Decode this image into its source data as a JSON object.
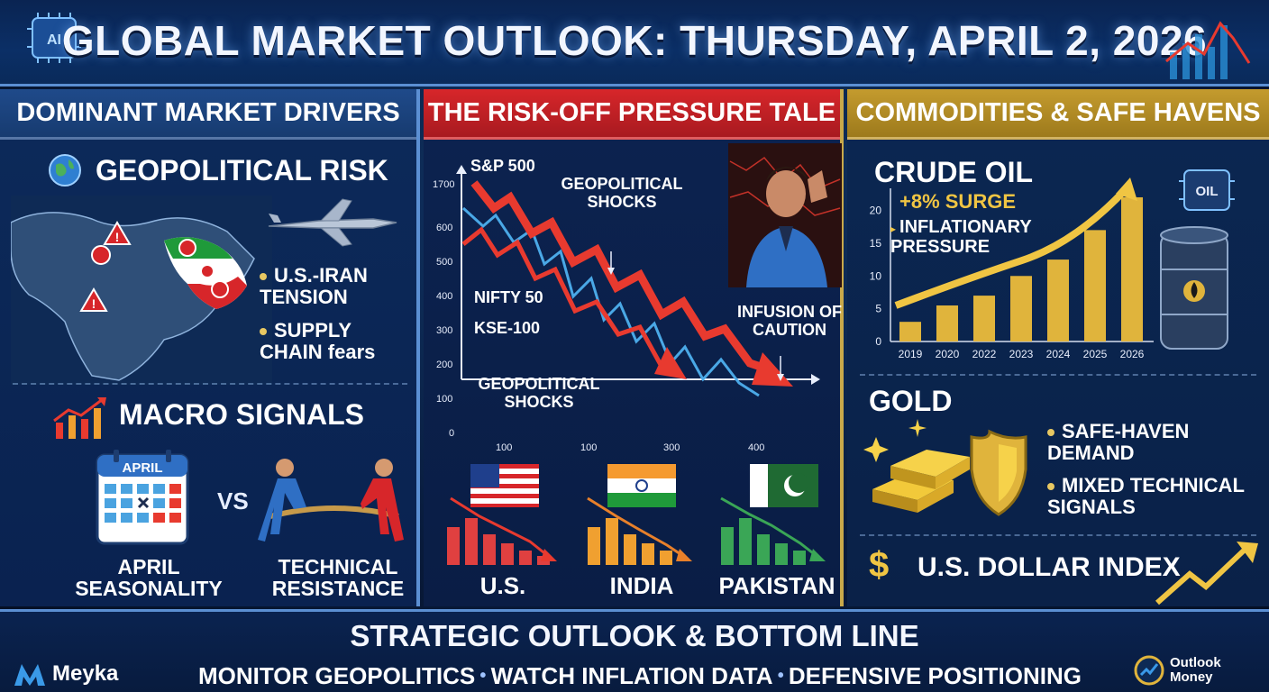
{
  "header": {
    "title": "GLOBAL MARKET OUTLOOK: THURSDAY, APRIL 2, 2026",
    "chip_label": "AI"
  },
  "left": {
    "heading": "DOMINANT MARKET DRIVERS",
    "geo": {
      "title": "GEOPOLITICAL RISK",
      "bullets": [
        "U.S.-IRAN TENSION",
        "SUPPLY CHAIN fears"
      ]
    },
    "macro": {
      "title": "MACRO SIGNALS",
      "calendar_month": "APRIL",
      "vs": "VS",
      "left_label": "APRIL SEASONALITY",
      "right_label": "TECHNICAL RESISTANCE"
    }
  },
  "middle": {
    "heading": "THE RISK-OFF PRESSURE TALE",
    "chart": {
      "series_labels": [
        "S&P 500",
        "NIFTY 50",
        "KSE-100"
      ],
      "annotations": [
        "GEOPOLITICAL SHOCKS",
        "GEOPOLITICAL SHOCKS",
        "INFUSION OF CAUTION"
      ]
    },
    "countries": [
      "U.S.",
      "INDIA",
      "PAKISTAN"
    ]
  },
  "right": {
    "heading": "COMMODITIES & SAFE HAVENS",
    "oil": {
      "title": "CRUDE OIL",
      "surge": "+8% SURGE",
      "note": "INFLATIONARY PRESSURE",
      "barrel_label": "OIL"
    },
    "gold": {
      "title": "GOLD",
      "bullets": [
        "SAFE-HAVEN DEMAND",
        "MIXED TECHNICAL SIGNALS"
      ]
    },
    "dollar": {
      "symbol": "$",
      "title": "U.S. DOLLAR INDEX"
    }
  },
  "footer": {
    "title": "STRATEGIC OUTLOOK & BOTTOM LINE",
    "items": [
      "MONITOR GEOPOLITICS",
      "WATCH INFLATION DATA",
      "DEFENSIVE POSITIONING"
    ],
    "separator": "•",
    "left_brand": "Meyka",
    "right_brand_line1": "Outlook",
    "right_brand_line2": "Money"
  },
  "chart_data": [
    {
      "type": "line",
      "title": "",
      "series": [
        {
          "name": "S&P 500",
          "color": "#e83a2f"
        },
        {
          "name": "NIFTY 50",
          "color": "#e83a2f"
        },
        {
          "name": "KSE-100",
          "color": "#4aa8e6"
        }
      ],
      "y_ticks": [
        "1700",
        "600",
        "500",
        "400",
        "300",
        "200",
        "100",
        "0"
      ],
      "x_ticks": [
        "100",
        "100",
        "300",
        "400"
      ],
      "trend": "down"
    },
    {
      "type": "bar",
      "title": "",
      "categories": [
        "2019",
        "2020",
        "2022",
        "2023",
        "2024",
        "2025",
        "2026"
      ],
      "values": [
        3,
        5.5,
        7,
        10,
        12.5,
        17,
        22
      ],
      "y_ticks": [
        "0",
        "5",
        "10",
        "15",
        "20"
      ],
      "ylim": [
        0,
        22
      ],
      "colors": {
        "bar": "#e0b43c",
        "trend": "#f0c543"
      }
    }
  ],
  "colors": {
    "accent_blue": "#5b8fd3",
    "accent_red": "#d7262a",
    "accent_gold": "#c49b2e"
  }
}
